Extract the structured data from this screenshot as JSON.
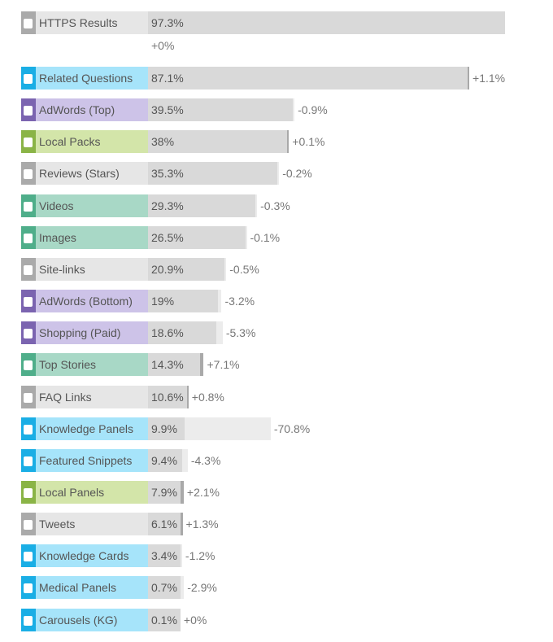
{
  "chart_data": {
    "type": "bar",
    "title": "",
    "xlim": [
      0,
      100
    ],
    "categories": [
      "HTTPS Results",
      "Related Questions",
      "AdWords (Top)",
      "Local Packs",
      "Reviews (Stars)",
      "Videos",
      "Images",
      "Site-links",
      "AdWords (Bottom)",
      "Shopping (Paid)",
      "Top Stories",
      "FAQ Links",
      "Knowledge Panels",
      "Featured Snippets",
      "Local Panels",
      "Tweets",
      "Knowledge Cards",
      "Medical Panels",
      "Carousels (KG)"
    ],
    "values": [
      97.3,
      87.1,
      39.5,
      38,
      35.3,
      29.3,
      26.5,
      20.9,
      19,
      18.6,
      14.3,
      10.6,
      9.9,
      9.4,
      7.9,
      6.1,
      3.4,
      0.7,
      0.1
    ],
    "value_labels": [
      "97.3%",
      "87.1%",
      "39.5%",
      "38%",
      "35.3%",
      "29.3%",
      "26.5%",
      "20.9%",
      "19%",
      "18.6%",
      "14.3%",
      "10.6%",
      "9.9%",
      "9.4%",
      "7.9%",
      "6.1%",
      "3.4%",
      "0.7%",
      "0.1%"
    ],
    "changes": [
      0,
      1.1,
      -0.9,
      0.1,
      -0.2,
      -0.3,
      -0.1,
      -0.5,
      -3.2,
      -5.3,
      7.1,
      0.8,
      -70.8,
      -4.3,
      2.1,
      1.3,
      -1.2,
      -2.9,
      0
    ],
    "change_labels": [
      "+0%",
      "+1.1%",
      "-0.9%",
      "+0.1%",
      "-0.2%",
      "-0.3%",
      "-0.1%",
      "-0.5%",
      "-3.2%",
      "-5.3%",
      "+7.1%",
      "+0.8%",
      "-70.8%",
      "-4.3%",
      "+2.1%",
      "+1.3%",
      "-1.2%",
      "-2.9%",
      "+0%"
    ],
    "groups": [
      "gray",
      "blue",
      "purple",
      "green",
      "gray",
      "teal",
      "teal",
      "gray",
      "purple",
      "purple",
      "teal",
      "gray",
      "blue",
      "blue",
      "green",
      "gray",
      "blue",
      "blue",
      "blue"
    ]
  },
  "colors": {
    "gray": {
      "strip": "#aaaaaa",
      "bg": "#e6e6e6"
    },
    "blue": {
      "strip": "#1aaee5",
      "bg": "#a6e4fa"
    },
    "purple": {
      "strip": "#7b64b0",
      "bg": "#cdc3e8"
    },
    "green": {
      "strip": "#8ab446",
      "bg": "#d3e5a9"
    },
    "teal": {
      "strip": "#4fae8a",
      "bg": "#a8d8c6"
    }
  }
}
